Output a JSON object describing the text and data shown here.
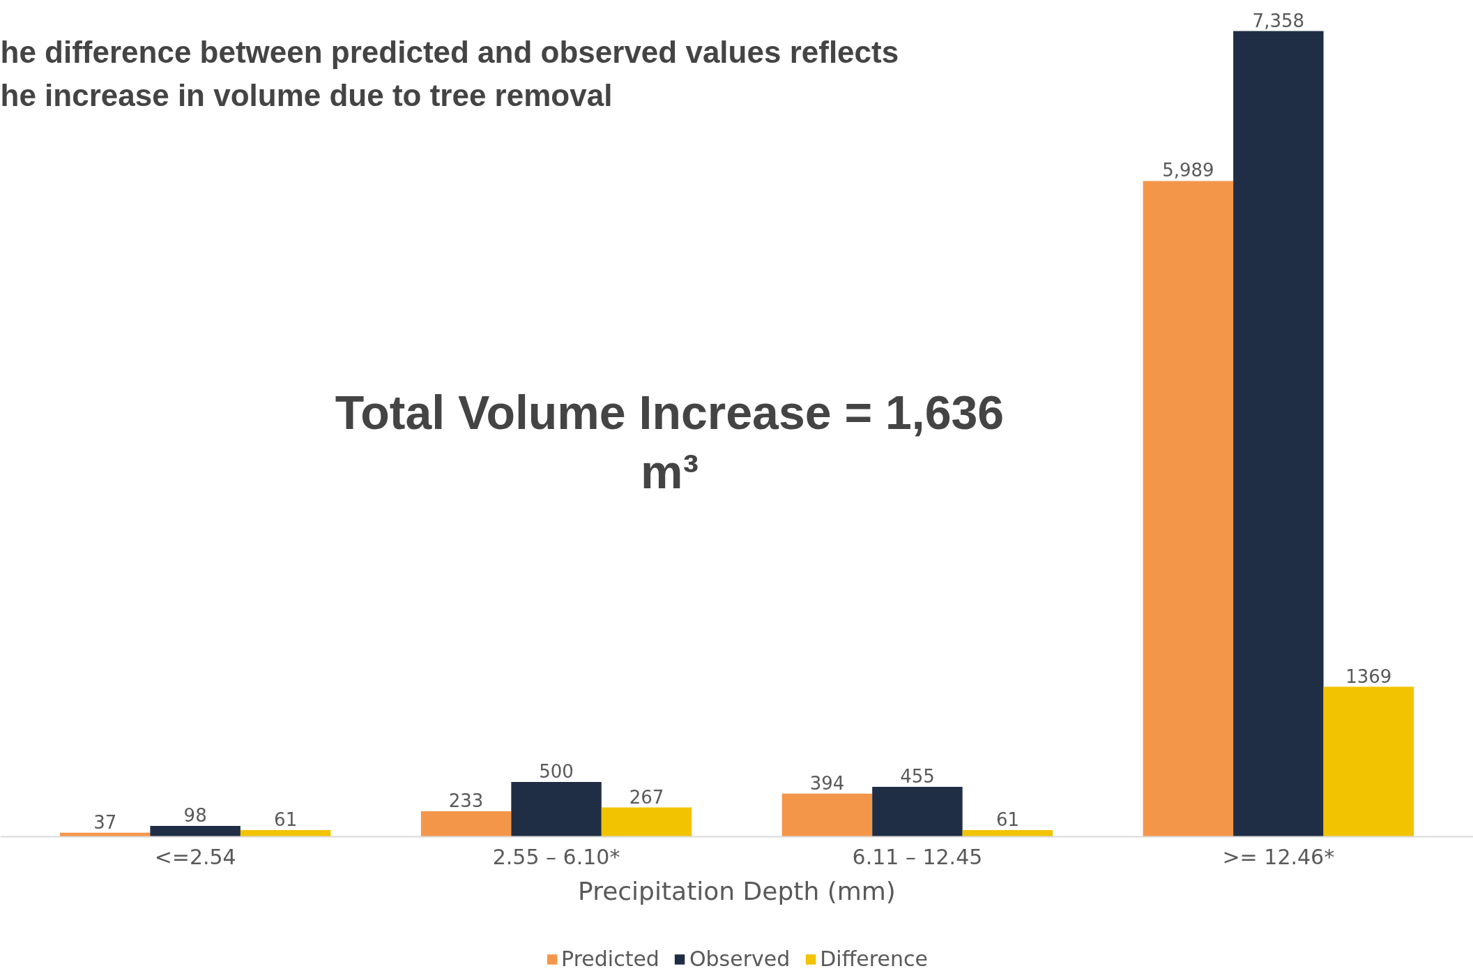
{
  "chart_data": {
    "type": "bar",
    "title": "he difference between predicted and observed values reflects\nhe increase in volume due to tree removal",
    "xlabel": "Precipitation Depth (mm)",
    "categories": [
      "<=2.54",
      "2.55 – 6.10*",
      "6.11 – 12.45",
      ">= 12.46*"
    ],
    "series": [
      {
        "name": "Predicted",
        "color": "#f4964a",
        "values": [
          37,
          233,
          394,
          5989
        ],
        "value_labels": [
          "37",
          "233",
          "394",
          "5,989"
        ]
      },
      {
        "name": "Observed",
        "color": "#1f2d45",
        "values": [
          98,
          500,
          455,
          7358
        ],
        "value_labels": [
          "98",
          "500",
          "455",
          "7,358"
        ]
      },
      {
        "name": "Difference",
        "color": "#f2c300",
        "values": [
          61,
          267,
          61,
          1369
        ],
        "value_labels": [
          "61",
          "267",
          "61",
          "1369"
        ]
      }
    ],
    "annotations": [
      "Total Volume Increase = 1,636\nm³"
    ],
    "tick_labels": "x",
    "grid": false,
    "legend": "bottom"
  }
}
